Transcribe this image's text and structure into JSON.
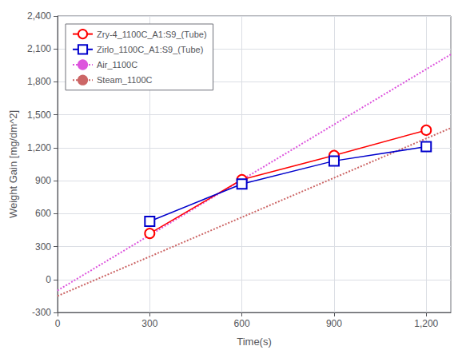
{
  "chart_data": {
    "type": "line",
    "xlabel": "Time(s)",
    "ylabel": "Weight Gain [mg/dm^2]",
    "xlim": [
      0,
      1280
    ],
    "ylim": [
      -300,
      2400
    ],
    "xticks": [
      0,
      300,
      600,
      900,
      1200
    ],
    "yticks": [
      -300,
      0,
      300,
      600,
      900,
      1200,
      1500,
      1800,
      2100,
      2400
    ],
    "grid": true,
    "legend": "upper left",
    "series": [
      {
        "name": "Zry-4_1100C_A1:S9_(Tube)",
        "color": "#ff0000",
        "x": [
          300,
          600,
          900,
          1200
        ],
        "values": [
          420,
          910,
          1130,
          1360
        ],
        "marker": "circle",
        "line_style": "solid"
      },
      {
        "name": "Zirlo_1100C_A1:S9_(Tube)",
        "color": "#0000cc",
        "x": [
          300,
          600,
          900,
          1200
        ],
        "values": [
          530,
          870,
          1080,
          1210
        ],
        "marker": "square",
        "line_style": "solid"
      },
      {
        "name": "Air_1100C",
        "color": "#dd55dd",
        "x": [
          0,
          1280
        ],
        "values": [
          -100,
          2050
        ],
        "line_style": "dotted"
      },
      {
        "name": "Steam_1100C",
        "color": "#cc6666",
        "x": [
          0,
          1280
        ],
        "values": [
          -150,
          1380
        ],
        "line_style": "dotted"
      }
    ]
  }
}
